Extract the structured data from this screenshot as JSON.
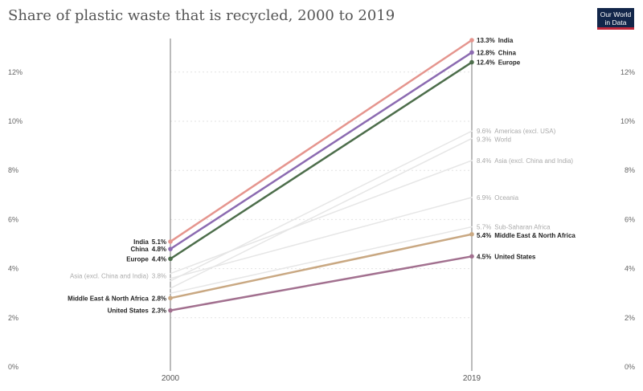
{
  "title": "Share of plastic waste that is recycled, 2000 to 2019",
  "logo": {
    "line1": "Our World",
    "line2": "in Data"
  },
  "chart_data": {
    "type": "slope",
    "x": [
      "2000",
      "2019"
    ],
    "ylim": [
      0,
      13.5
    ],
    "yticks": [
      0,
      2,
      4,
      6,
      8,
      10,
      12
    ],
    "ytick_labels": [
      "0%",
      "2%",
      "4%",
      "6%",
      "8%",
      "10%",
      "12%"
    ],
    "grid": true,
    "series": [
      {
        "name": "Americas (excl. USA)",
        "values": [
          3.5,
          9.6
        ],
        "start_label": "",
        "end_label": "9.6%",
        "color": "#e6e6e6",
        "highlighted": false
      },
      {
        "name": "World",
        "values": [
          3.2,
          9.3
        ],
        "start_label": "",
        "end_label": "9.3%",
        "color": "#e6e6e6",
        "highlighted": false
      },
      {
        "name": "Asia (excl. China and India)",
        "values": [
          3.8,
          8.4
        ],
        "start_label": "3.8%",
        "end_label": "8.4%",
        "color": "#e6e6e6",
        "highlighted": false
      },
      {
        "name": "Oceania",
        "values": [
          3.6,
          6.9
        ],
        "start_label": "",
        "end_label": "6.9%",
        "color": "#e6e6e6",
        "highlighted": false
      },
      {
        "name": "Sub-Saharan Africa",
        "values": [
          3.0,
          5.7
        ],
        "start_label": "",
        "end_label": "5.7%",
        "color": "#e6e6e6",
        "highlighted": false
      },
      {
        "name": "India",
        "values": [
          5.1,
          13.3
        ],
        "start_label": "5.1%",
        "end_label": "13.3%",
        "color": "#e5958e",
        "highlighted": true
      },
      {
        "name": "China",
        "values": [
          4.8,
          12.8
        ],
        "start_label": "4.8%",
        "end_label": "12.8%",
        "color": "#8c6bb1",
        "highlighted": true
      },
      {
        "name": "Europe",
        "values": [
          4.4,
          12.4
        ],
        "start_label": "4.4%",
        "end_label": "12.4%",
        "color": "#4d6e4b",
        "highlighted": true
      },
      {
        "name": "Middle East & North Africa",
        "values": [
          2.8,
          5.4
        ],
        "start_label": "2.8%",
        "end_label": "5.4%",
        "color": "#c9a882",
        "highlighted": true
      },
      {
        "name": "United States",
        "values": [
          2.3,
          4.5
        ],
        "start_label": "2.3%",
        "end_label": "4.5%",
        "color": "#a2708f",
        "highlighted": true
      }
    ]
  }
}
